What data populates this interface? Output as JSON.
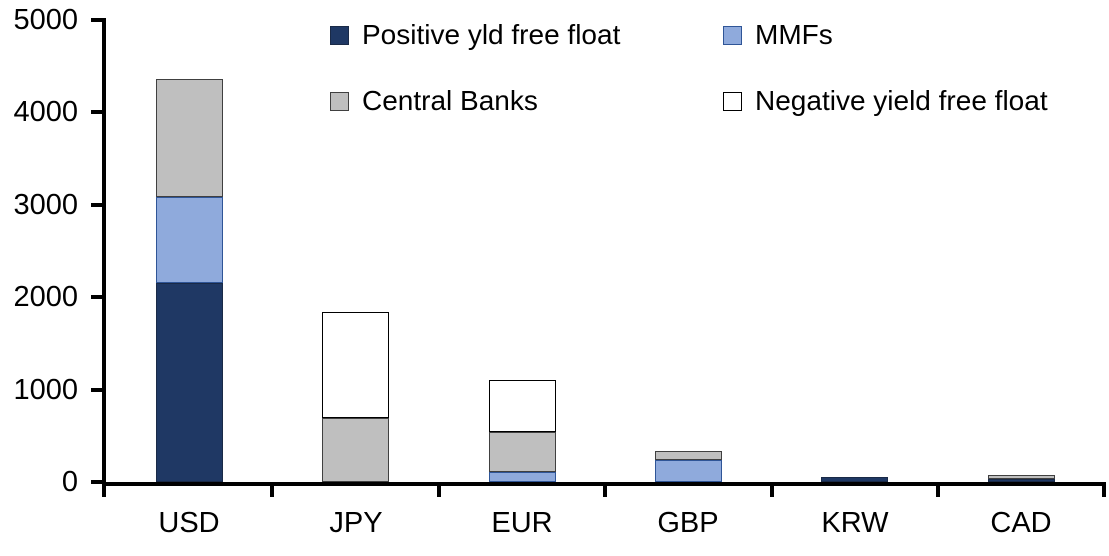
{
  "chart_data": {
    "type": "bar",
    "stacked": true,
    "title": "",
    "xlabel": "",
    "ylabel": "",
    "categories": [
      "USD",
      "JPY",
      "EUR",
      "GBP",
      "KRW",
      "CAD"
    ],
    "series": [
      {
        "name": "Positive yld free float",
        "color": "#1F3864",
        "border": "#1A2A47",
        "values": [
          2150,
          0,
          0,
          0,
          50,
          40
        ]
      },
      {
        "name": "MMFs",
        "color": "#8FAADC",
        "border": "#2F5597",
        "values": [
          930,
          0,
          110,
          230,
          0,
          0
        ]
      },
      {
        "name": "Central Banks",
        "color": "#BFBFBF",
        "border": "#404040",
        "values": [
          1280,
          690,
          430,
          100,
          0,
          40
        ]
      },
      {
        "name": "Negative yield free float",
        "color": "#FFFFFF",
        "border": "#000000",
        "values": [
          0,
          1150,
          560,
          0,
          0,
          0
        ]
      }
    ],
    "stack_order_bottom_to_top": [
      "Positive yld free float",
      "MMFs",
      "Central Banks",
      "Negative yield free float"
    ],
    "totals": {
      "USD": 4360,
      "JPY": 1840,
      "EUR": 1100,
      "GBP": 330,
      "KRW": 50,
      "CAD": 80
    },
    "ylim": [
      0,
      5000
    ],
    "yticks": [
      "0",
      "1000",
      "2000",
      "3000",
      "4000",
      "5000"
    ],
    "grid": false,
    "legend_position": "top",
    "legend_rows": [
      [
        "Positive yld free float",
        "MMFs"
      ],
      [
        "Central Banks",
        "Negative yield free float"
      ]
    ],
    "axis_color": "#000000",
    "background": "#FFFFFF"
  }
}
